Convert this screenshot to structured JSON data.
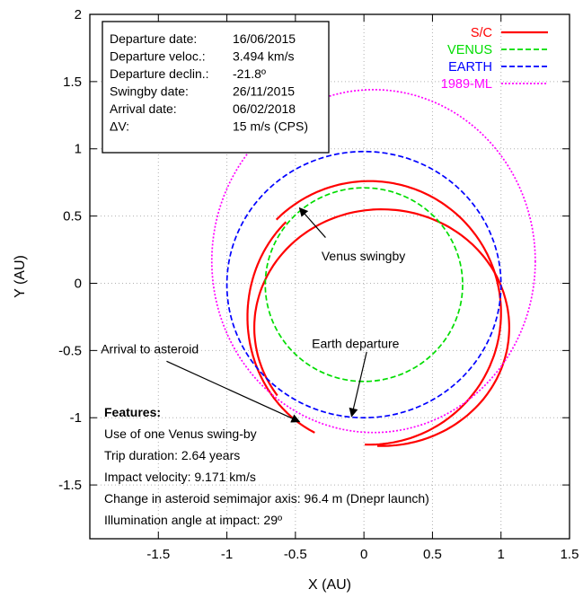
{
  "chart_data": {
    "type": "line",
    "xlabel": "X (AU)",
    "ylabel": "Y (AU)",
    "xlim": [
      -2.0,
      1.5
    ],
    "ylim": [
      -1.9,
      2.0
    ],
    "xticks": [
      "-1.5",
      "-1",
      "-0.5",
      "0",
      "0.5",
      "1",
      "1.5"
    ],
    "yticks": [
      "2",
      "1.5",
      "1",
      "0.5",
      "0",
      "-0.5",
      "-1",
      "-1.5"
    ],
    "xtick_values": [
      -1.5,
      -1,
      -0.5,
      0,
      0.5,
      1,
      1.5
    ],
    "ytick_values": [
      2,
      1.5,
      1,
      0.5,
      0,
      -0.5,
      -1,
      -1.5
    ],
    "grid": true,
    "legend_position": "top-right",
    "series": [
      {
        "name": "S/C",
        "color": "#ff0000",
        "style": "solid",
        "arcs": [
          {
            "cx": 0.04,
            "cy": -0.22,
            "rx": 0.96,
            "ry": 0.98,
            "start_deg": -92,
            "end_deg": 135
          },
          {
            "cx": 0.0,
            "cy": -0.25,
            "rx": 0.85,
            "ry": 0.95,
            "start_deg": 132,
            "end_deg": 245
          },
          {
            "cx": 0.13,
            "cy": -0.33,
            "rx": 0.93,
            "ry": 0.88,
            "start_deg": -92,
            "end_deg": 215
          }
        ]
      },
      {
        "name": "VENUS",
        "color": "#00dd00",
        "style": "dashed",
        "cx": 0.0,
        "cy": -0.01,
        "rx": 0.72,
        "ry": 0.72
      },
      {
        "name": "EARTH",
        "color": "#0000ff",
        "style": "dashed",
        "cx": 0.0,
        "cy": -0.01,
        "rx": 1.0,
        "ry": 0.99
      },
      {
        "name": "1989-ML",
        "color": "#ff00ff",
        "style": "dotted",
        "cx": 0.07,
        "cy": 0.165,
        "rx": 1.18,
        "ry": 1.275
      }
    ],
    "info_box": [
      {
        "label": "Departure date:",
        "value": "16/06/2015"
      },
      {
        "label": "Departure veloc.:",
        "value": "3.494 km/s"
      },
      {
        "label": "Departure declin.:",
        "value": "-21.8º"
      },
      {
        "label": "Swingby date:",
        "value": "26/11/2015"
      },
      {
        "label": "Arrival date:",
        "value": "06/02/2018"
      },
      {
        "label": "ΔV:",
        "value": "15 m/s (CPS)"
      }
    ],
    "annotations": [
      {
        "text": "Venus swingby",
        "tx": -0.31,
        "ty": 0.17,
        "ax": -0.28,
        "ay": 0.34,
        "px": -0.47,
        "py": 0.56
      },
      {
        "text": "Earth departure",
        "tx": -0.38,
        "ty": -0.48,
        "ax": 0.02,
        "ay": -0.51,
        "px": -0.09,
        "py": -0.99
      },
      {
        "text": "Arrival to asteroid",
        "tx": -1.92,
        "ty": -0.52,
        "ax": -1.44,
        "ay": -0.58,
        "px": -0.47,
        "py": -1.03
      }
    ],
    "features": {
      "title": "Features:",
      "lines": [
        "Use of one Venus swing-by",
        "Trip duration: 2.64 years",
        "Impact velocity: 9.171 km/s",
        "Change in asteroid semimajor axis: 96.4 m (Dnepr launch)",
        "Illumination angle at impact: 29º"
      ]
    }
  }
}
